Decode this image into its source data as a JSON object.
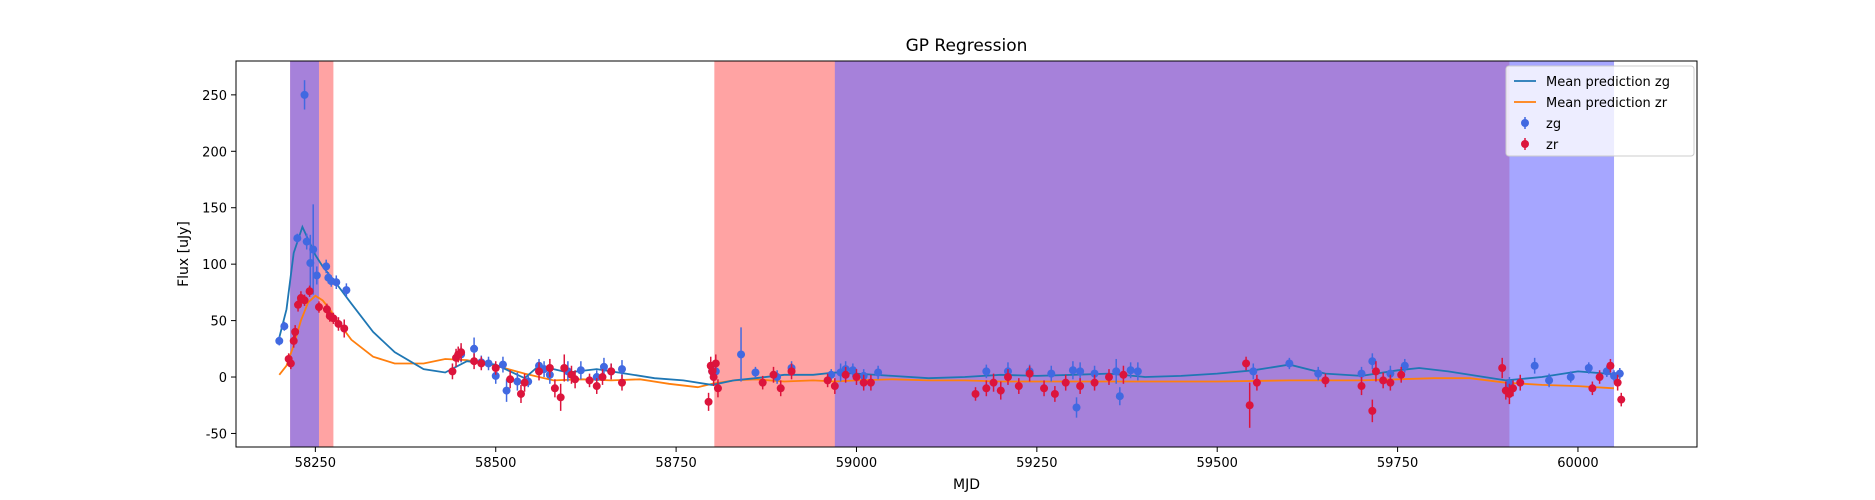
{
  "chart_data": {
    "type": "scatter",
    "title": "GP Regression",
    "xlabel": "MJD",
    "ylabel": "Flux [uJy]",
    "xlim": [
      58140,
      60165
    ],
    "ylim": [
      -62,
      280
    ],
    "xticks": [
      58250,
      58500,
      58750,
      59000,
      59250,
      59500,
      59750,
      60000
    ],
    "yticks": [
      -50,
      0,
      50,
      100,
      150,
      200,
      250
    ],
    "legend_position": "top-right",
    "colors": {
      "zg": "#4169e1",
      "zr": "#dc143c",
      "gp_zg": "#1f77b4",
      "gp_zr": "#ff7f0e",
      "red_span": "#ff6666",
      "blue_span": "#6b6bff"
    },
    "spans": [
      {
        "band": "zr",
        "x0": 58215,
        "x1": 58275
      },
      {
        "band": "zg",
        "x0": 58215,
        "x1": 58255
      },
      {
        "band": "zr",
        "x0": 58803,
        "x1": 59905
      },
      {
        "band": "zg",
        "x0": 58970,
        "x1": 60050
      }
    ],
    "legend": [
      {
        "label": "Mean prediction zg",
        "kind": "line",
        "series": "gp_zg"
      },
      {
        "label": "Mean prediction zr",
        "kind": "line",
        "series": "gp_zr"
      },
      {
        "label": "zg",
        "kind": "point",
        "series": "zg"
      },
      {
        "label": "zr",
        "kind": "point",
        "series": "zr"
      }
    ],
    "gp_zg": {
      "x": [
        58200,
        58210,
        58220,
        58232,
        58240,
        58250,
        58260,
        58270,
        58280,
        58300,
        58330,
        58360,
        58400,
        58430,
        58460,
        58500,
        58540,
        58560,
        58600,
        58640,
        58680,
        58720,
        58760,
        58800,
        58830,
        58860,
        58900,
        58940,
        58970,
        59000,
        59050,
        59100,
        59150,
        59200,
        59250,
        59300,
        59350,
        59400,
        59450,
        59500,
        59550,
        59600,
        59650,
        59700,
        59750,
        59780,
        59820,
        59870,
        59900,
        59950,
        60000,
        60060
      ],
      "y": [
        35,
        60,
        110,
        133,
        122,
        108,
        98,
        90,
        82,
        65,
        40,
        22,
        7,
        4,
        14,
        11,
        -1,
        10,
        4,
        7,
        3,
        -1,
        -3,
        -7,
        -3,
        -1,
        2,
        2,
        4,
        3,
        1,
        -1,
        0,
        2,
        1,
        2,
        3,
        0,
        1,
        3,
        6,
        11,
        3,
        1,
        6,
        8,
        5,
        0,
        -3,
        0,
        5,
        2
      ]
    },
    "gp_zr": {
      "x": [
        58200,
        58210,
        58220,
        58230,
        58240,
        58250,
        58260,
        58270,
        58280,
        58300,
        58330,
        58360,
        58400,
        58430,
        58460,
        58500,
        58540,
        58580,
        58620,
        58660,
        58700,
        58740,
        58780,
        58800,
        58830,
        58860,
        58900,
        58940,
        58970,
        59000,
        59050,
        59100,
        59150,
        59200,
        59300,
        59400,
        59500,
        59600,
        59700,
        59750,
        59800,
        59850,
        59900,
        59950,
        60000,
        60050
      ],
      "y": [
        2,
        10,
        28,
        50,
        66,
        72,
        68,
        60,
        50,
        33,
        18,
        12,
        12,
        16,
        15,
        10,
        3,
        -3,
        -2,
        -3,
        -2,
        -6,
        -9,
        -6,
        -3,
        -2,
        -4,
        -3,
        -4,
        -3,
        -2,
        -3,
        -3,
        -4,
        -4,
        -4,
        -4,
        -3,
        -3,
        -2,
        -1,
        -1,
        -5,
        -7,
        -8,
        -10
      ]
    },
    "zg": {
      "x": [
        58200,
        58207,
        58225,
        58235,
        58238,
        58243,
        58247,
        58252,
        58265,
        58268,
        58272,
        58279,
        58293,
        58452,
        58470,
        58480,
        58490,
        58500,
        58510,
        58515,
        58530,
        58545,
        58560,
        58567,
        58575,
        58600,
        58618,
        58640,
        58650,
        58660,
        58675,
        58800,
        58805,
        58840,
        58860,
        58890,
        58910,
        58965,
        58978,
        58985,
        58995,
        59010,
        59030,
        59180,
        59210,
        59240,
        59270,
        59300,
        59305,
        59310,
        59330,
        59360,
        59365,
        59380,
        59390,
        59550,
        59600,
        59640,
        59700,
        59715,
        59740,
        59760,
        59905,
        59940,
        59960,
        59990,
        60015,
        60040,
        60050,
        60058
      ],
      "y": [
        32,
        45,
        123,
        250,
        120,
        101,
        113,
        90,
        98,
        88,
        85,
        84,
        77,
        20,
        25,
        13,
        12,
        1,
        11,
        -12,
        -4,
        -4,
        10,
        7,
        2,
        5,
        6,
        0,
        9,
        5,
        7,
        5,
        5,
        20,
        4,
        0,
        8,
        2,
        4,
        7,
        6,
        1,
        4,
        5,
        5,
        5,
        3,
        6,
        -27,
        5,
        3,
        5,
        -17,
        6,
        5,
        5,
        12,
        3,
        3,
        14,
        3,
        10,
        -6,
        10,
        -3,
        0,
        8,
        5,
        1,
        3
      ],
      "err": [
        4,
        4,
        4,
        13,
        7,
        25,
        40,
        8,
        6,
        5,
        5,
        6,
        6,
        7,
        10,
        6,
        6,
        7,
        7,
        10,
        8,
        5,
        6,
        7,
        8,
        9,
        8,
        6,
        8,
        7,
        8,
        7,
        7,
        24,
        5,
        6,
        6,
        5,
        8,
        7,
        6,
        6,
        6,
        6,
        8,
        6,
        7,
        8,
        9,
        8,
        7,
        11,
        8,
        7,
        8,
        7,
        5,
        6,
        6,
        7,
        7,
        6,
        6,
        7,
        6,
        5,
        5,
        5,
        5,
        5
      ]
    },
    "zr": {
      "x": [
        58213,
        58216,
        58220,
        58222,
        58226,
        58230,
        58235,
        58242,
        58255,
        58266,
        58270,
        58275,
        58282,
        58290,
        58440,
        58445,
        58448,
        58452,
        58470,
        58480,
        58500,
        58520,
        58535,
        58540,
        58560,
        58575,
        58582,
        58590,
        58595,
        58605,
        58610,
        58630,
        58640,
        58648,
        58660,
        58675,
        58795,
        58798,
        58800,
        58802,
        58805,
        58808,
        58870,
        58885,
        58895,
        58910,
        58960,
        58970,
        58985,
        59000,
        59010,
        59020,
        59165,
        59180,
        59190,
        59200,
        59210,
        59225,
        59240,
        59260,
        59275,
        59290,
        59310,
        59330,
        59350,
        59370,
        59540,
        59545,
        59555,
        59650,
        59700,
        59715,
        59720,
        59730,
        59740,
        59755,
        59895,
        59900,
        59905,
        59910,
        59920,
        60020,
        60030,
        60045,
        60055,
        60060
      ],
      "y": [
        16,
        12,
        32,
        40,
        64,
        70,
        68,
        76,
        62,
        60,
        54,
        52,
        47,
        43,
        5,
        17,
        20,
        22,
        14,
        12,
        8,
        -2,
        -15,
        -5,
        5,
        8,
        -10,
        -18,
        8,
        2,
        -2,
        -3,
        -8,
        0,
        5,
        -5,
        -22,
        10,
        5,
        0,
        12,
        -10,
        -5,
        2,
        -10,
        5,
        -3,
        -8,
        2,
        0,
        -5,
        -5,
        -15,
        -10,
        -5,
        -12,
        0,
        -8,
        3,
        -10,
        -15,
        -5,
        -8,
        -5,
        0,
        2,
        12,
        -25,
        -5,
        -3,
        -8,
        -30,
        5,
        -3,
        -5,
        2,
        8,
        -12,
        -15,
        -10,
        -5,
        -10,
        0,
        10,
        -5,
        -20
      ],
      "err": [
        5,
        5,
        6,
        6,
        6,
        6,
        5,
        5,
        5,
        5,
        5,
        5,
        6,
        8,
        7,
        8,
        7,
        8,
        7,
        6,
        6,
        8,
        8,
        8,
        8,
        8,
        8,
        12,
        12,
        8,
        8,
        6,
        7,
        7,
        7,
        7,
        8,
        8,
        8,
        8,
        8,
        8,
        6,
        7,
        7,
        7,
        6,
        7,
        7,
        7,
        7,
        7,
        6,
        7,
        8,
        8,
        7,
        7,
        7,
        7,
        7,
        7,
        7,
        7,
        7,
        8,
        6,
        20,
        7,
        6,
        8,
        10,
        9,
        7,
        7,
        7,
        9,
        8,
        9,
        7,
        7,
        6,
        6,
        6,
        7,
        6
      ]
    }
  }
}
